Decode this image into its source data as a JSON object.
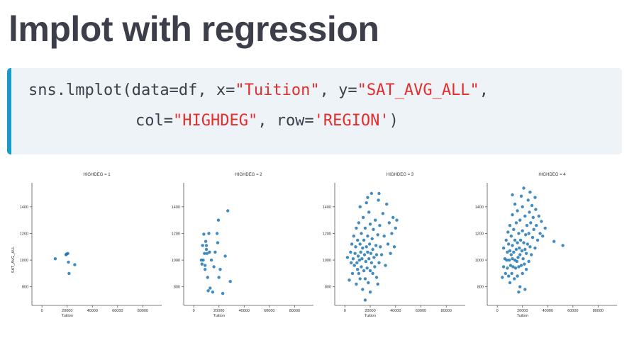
{
  "slide": {
    "title": "lmplot with regression"
  },
  "code": {
    "line1": {
      "p1": "sns.lmplot(data=df, x=",
      "s1": "\"Tuition\"",
      "p2": ", y=",
      "s2": "\"SAT_AVG_ALL\"",
      "p3": ","
    },
    "line2": {
      "p1": "col=",
      "s1": "\"HIGHDEG\"",
      "p2": ", row=",
      "s2": "'REGION'",
      "p3": ")"
    }
  },
  "colors": {
    "point": "#1f77b4",
    "code_border": "#1a9ac9",
    "code_bg": "#edf3f7",
    "string": "#e32d2d"
  },
  "chart_data": {
    "type": "scatter",
    "facet_column": "HIGHDEG",
    "xlabel": "Tuition",
    "ylabel": "SAT_AVG_ALL",
    "xlim": [
      -8000,
      95000
    ],
    "ylim": [
      660,
      1580
    ],
    "xticks": [
      0,
      20000,
      40000,
      60000,
      80000
    ],
    "yticks": [
      800,
      1000,
      1200,
      1400
    ],
    "ytick_labels_on_all": true,
    "grid": false,
    "panels": [
      {
        "title": "HIGHDEG = 1",
        "points": [
          [
            10500,
            1010
          ],
          [
            19500,
            1045
          ],
          [
            20500,
            1050
          ],
          [
            21000,
            985
          ],
          [
            21500,
            900
          ],
          [
            26000,
            965
          ],
          [
            19000,
            1040
          ]
        ]
      },
      {
        "title": "HIGHDEG = 2",
        "points": [
          [
            6000,
            1000
          ],
          [
            6500,
            970
          ],
          [
            7000,
            1110
          ],
          [
            8000,
            1195
          ],
          [
            8500,
            1050
          ],
          [
            9000,
            960
          ],
          [
            9000,
            930
          ],
          [
            9500,
            1140
          ],
          [
            10000,
            1080
          ],
          [
            10500,
            1050
          ],
          [
            11000,
            870
          ],
          [
            11500,
            770
          ],
          [
            12000,
            1200
          ],
          [
            12500,
            1060
          ],
          [
            13000,
            790
          ],
          [
            14000,
            1000
          ],
          [
            15000,
            760
          ],
          [
            16000,
            950
          ],
          [
            17000,
            1060
          ],
          [
            18500,
            1200
          ],
          [
            19000,
            1130
          ],
          [
            19500,
            1300
          ],
          [
            20000,
            870
          ],
          [
            21000,
            930
          ],
          [
            23000,
            750
          ],
          [
            25000,
            1030
          ],
          [
            27000,
            1370
          ],
          [
            29000,
            840
          ],
          [
            7500,
            1000
          ],
          [
            10000,
            1110
          ]
        ]
      },
      {
        "title": "HIGHDEG = 3",
        "points": [
          [
            2000,
            1020
          ],
          [
            3500,
            850
          ],
          [
            4500,
            1060
          ],
          [
            5000,
            980
          ],
          [
            5500,
            1120
          ],
          [
            6000,
            900
          ],
          [
            6500,
            1010
          ],
          [
            7000,
            1180
          ],
          [
            7500,
            960
          ],
          [
            8000,
            1050
          ],
          [
            8500,
            1100
          ],
          [
            9000,
            820
          ],
          [
            9000,
            1240
          ],
          [
            9500,
            980
          ],
          [
            10000,
            930
          ],
          [
            10000,
            1150
          ],
          [
            10500,
            1030
          ],
          [
            11000,
            900
          ],
          [
            11000,
            1280
          ],
          [
            11500,
            1000
          ],
          [
            12000,
            860
          ],
          [
            12000,
            1120
          ],
          [
            12500,
            1060
          ],
          [
            13000,
            950
          ],
          [
            13000,
            1200
          ],
          [
            13500,
            1010
          ],
          [
            14000,
            780
          ],
          [
            14000,
            1090
          ],
          [
            14500,
            1320
          ],
          [
            15000,
            920
          ],
          [
            15000,
            1150
          ],
          [
            15500,
            1040
          ],
          [
            16000,
            860
          ],
          [
            16000,
            1240
          ],
          [
            16500,
            990
          ],
          [
            17000,
            1100
          ],
          [
            17000,
            1430
          ],
          [
            17500,
            940
          ],
          [
            18000,
            1060
          ],
          [
            18000,
            1180
          ],
          [
            18500,
            830
          ],
          [
            19000,
            1010
          ],
          [
            19000,
            1360
          ],
          [
            19500,
            1120
          ],
          [
            20000,
            920
          ],
          [
            20000,
            1270
          ],
          [
            20500,
            1050
          ],
          [
            21000,
            980
          ],
          [
            21000,
            1500
          ],
          [
            21500,
            1160
          ],
          [
            22000,
            900
          ],
          [
            22000,
            1080
          ],
          [
            22500,
            1230
          ],
          [
            23000,
            1020
          ],
          [
            23500,
            950
          ],
          [
            24000,
            1300
          ],
          [
            24500,
            1110
          ],
          [
            25000,
            870
          ],
          [
            25000,
            1040
          ],
          [
            26000,
            1190
          ],
          [
            26500,
            1450
          ],
          [
            27000,
            980
          ],
          [
            27500,
            1260
          ],
          [
            28000,
            1100
          ],
          [
            29000,
            1040
          ],
          [
            30000,
            1350
          ],
          [
            31000,
            1180
          ],
          [
            32000,
            960
          ],
          [
            33000,
            1420
          ],
          [
            34000,
            1120
          ],
          [
            35000,
            1280
          ],
          [
            36000,
            1050
          ],
          [
            37000,
            1200
          ],
          [
            38000,
            1320
          ],
          [
            39000,
            1100
          ],
          [
            40000,
            1240
          ],
          [
            41000,
            1300
          ],
          [
            16000,
            700
          ],
          [
            20000,
            760
          ],
          [
            26000,
            820
          ],
          [
            12000,
            1400
          ],
          [
            18000,
            1470
          ],
          [
            27000,
            1500
          ]
        ]
      },
      {
        "title": "HIGHDEG = 4",
        "points": [
          [
            4000,
            870
          ],
          [
            5000,
            950
          ],
          [
            5000,
            1090
          ],
          [
            6000,
            1010
          ],
          [
            6500,
            900
          ],
          [
            7000,
            1150
          ],
          [
            7500,
            1000
          ],
          [
            8000,
            940
          ],
          [
            8000,
            1060
          ],
          [
            8500,
            1210
          ],
          [
            9000,
            880
          ],
          [
            9000,
            1120
          ],
          [
            9500,
            1000
          ],
          [
            10000,
            830
          ],
          [
            10000,
            1070
          ],
          [
            10000,
            1260
          ],
          [
            10500,
            960
          ],
          [
            11000,
            1040
          ],
          [
            11000,
            1180
          ],
          [
            11500,
            900
          ],
          [
            12000,
            1010
          ],
          [
            12000,
            1110
          ],
          [
            12000,
            1340
          ],
          [
            12500,
            950
          ],
          [
            13000,
            1060
          ],
          [
            13000,
            1230
          ],
          [
            13500,
            860
          ],
          [
            14000,
            1000
          ],
          [
            14000,
            1150
          ],
          [
            14000,
            1420
          ],
          [
            14500,
            940
          ],
          [
            15000,
            1080
          ],
          [
            15000,
            1280
          ],
          [
            15500,
            990
          ],
          [
            16000,
            880
          ],
          [
            16000,
            1130
          ],
          [
            16000,
            1370
          ],
          [
            16500,
            1020
          ],
          [
            17000,
            950
          ],
          [
            17000,
            1200
          ],
          [
            17500,
            1090
          ],
          [
            18000,
            800
          ],
          [
            18000,
            1040
          ],
          [
            18000,
            1300
          ],
          [
            18500,
            1150
          ],
          [
            19000,
            960
          ],
          [
            19000,
            1480
          ],
          [
            19500,
            1070
          ],
          [
            20000,
            900
          ],
          [
            20000,
            1220
          ],
          [
            20000,
            1400
          ],
          [
            20500,
            1010
          ],
          [
            21000,
            1130
          ],
          [
            21000,
            1540
          ],
          [
            21500,
            970
          ],
          [
            22000,
            1080
          ],
          [
            22000,
            1330
          ],
          [
            22500,
            1190
          ],
          [
            23000,
            930
          ],
          [
            23000,
            1050
          ],
          [
            23500,
            1260
          ],
          [
            24000,
            1120
          ],
          [
            24500,
            1450
          ],
          [
            25000,
            990
          ],
          [
            25000,
            1200
          ],
          [
            25500,
            1360
          ],
          [
            26000,
            1100
          ],
          [
            26500,
            1280
          ],
          [
            27000,
            1040
          ],
          [
            27500,
            1410
          ],
          [
            28000,
            1170
          ],
          [
            28500,
            1320
          ],
          [
            29000,
            1230
          ],
          [
            30000,
            1090
          ],
          [
            30500,
            1380
          ],
          [
            31000,
            1260
          ],
          [
            32000,
            1150
          ],
          [
            33000,
            1330
          ],
          [
            34000,
            1200
          ],
          [
            35000,
            1290
          ],
          [
            36000,
            1180
          ],
          [
            38000,
            1240
          ],
          [
            45000,
            1140
          ],
          [
            52000,
            1110
          ],
          [
            17000,
            760
          ],
          [
            22000,
            780
          ],
          [
            12000,
            1490
          ],
          [
            30000,
            1470
          ],
          [
            26000,
            1510
          ]
        ]
      }
    ]
  }
}
